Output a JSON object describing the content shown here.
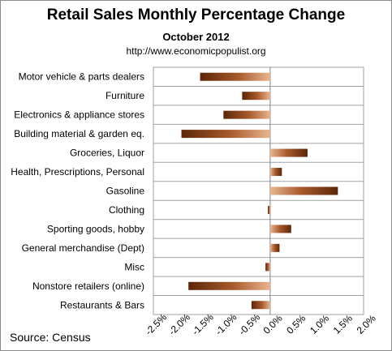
{
  "title": "Retail Sales Monthly  Percentage Change",
  "subtitle": "October 2012",
  "source_url": "http://www.economicpopulist.org",
  "source": "Source:  Census",
  "chart_data": {
    "type": "bar",
    "orientation": "horizontal",
    "title": "Retail Sales Monthly  Percentage Change",
    "subtitle": "October 2012",
    "categories": [
      "Motor vehicle & parts dealers",
      "Furniture",
      "Electronics & appliance stores",
      "Building material & garden eq.",
      "Groceries, Liquor",
      "Health, Prescriptions, Personal",
      "Gasoline",
      "Clothing",
      "Sporting goods, hobby",
      "General merchandise (Dept)",
      "Misc",
      "Nonstore retailers (online)",
      "Restaurants & Bars"
    ],
    "values": [
      -1.5,
      -0.6,
      -1.0,
      -1.9,
      0.8,
      0.25,
      1.45,
      -0.05,
      0.45,
      0.2,
      -0.1,
      -1.75,
      -0.4
    ],
    "xlim": [
      -2.5,
      2.0
    ],
    "xticks": [
      -2.5,
      -2.0,
      -1.5,
      -1.0,
      -0.5,
      0.0,
      0.5,
      1.0,
      1.5,
      2.0
    ],
    "xtick_labels": [
      "-2.5%",
      "-2.0%",
      "-1.5%",
      "-1.0%",
      "-0.5%",
      "0.0%",
      "0.5%",
      "1.0%",
      "1.5%",
      "2.0%"
    ],
    "grid": true,
    "colors": {
      "dark": "#5c2608",
      "mid": "#a85a2c",
      "light": "#e8b590",
      "grid": "#a0a0a0"
    }
  }
}
